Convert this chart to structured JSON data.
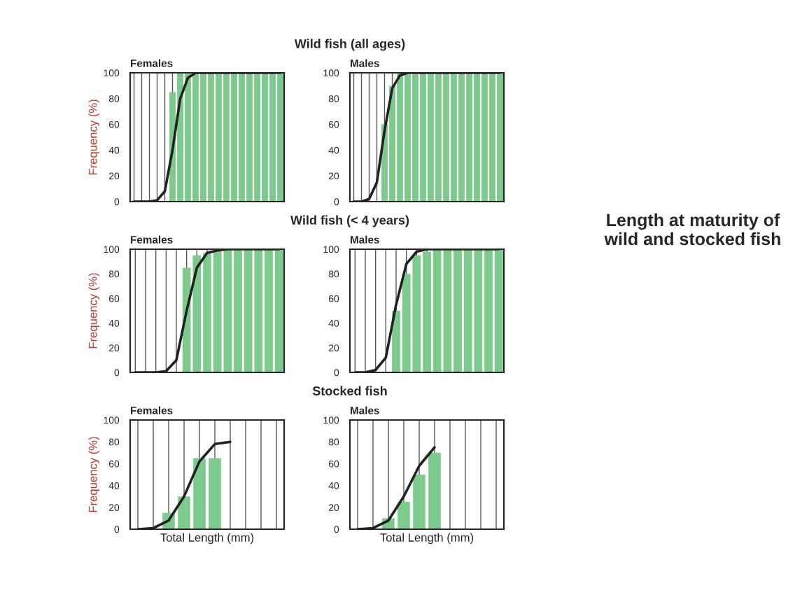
{
  "chart_data": [
    {
      "type": "bar",
      "title": "Females",
      "annotations": [
        "Wild fish (all ages)"
      ],
      "ylabel": "Frequency (%)",
      "categories": [
        null,
        null,
        null,
        null,
        null,
        null,
        null,
        null,
        null,
        null,
        null,
        null,
        null,
        null,
        null,
        null,
        null,
        null,
        null,
        null
      ],
      "ylim": [
        0,
        100
      ],
      "yticks": [
        0,
        20,
        40,
        60,
        80,
        100
      ],
      "grid": "x",
      "tick_labels": "y",
      "series": [
        {
          "type": "bar",
          "color": "#7ccb8c",
          "values": [
            0,
            0,
            0,
            0,
            0,
            85,
            100,
            100,
            100,
            100,
            100,
            100,
            100,
            100,
            100,
            100,
            100,
            100,
            100,
            100
          ]
        },
        {
          "type": "line",
          "color": "#222222",
          "values": [
            0,
            0,
            0,
            1,
            8,
            40,
            80,
            96,
            100,
            100,
            100,
            100,
            100,
            100,
            100,
            100,
            100,
            100,
            100,
            100
          ]
        }
      ]
    },
    {
      "type": "bar",
      "title": "Males",
      "categories": [
        null,
        null,
        null,
        null,
        null,
        null,
        null,
        null,
        null,
        null,
        null,
        null,
        null,
        null,
        null,
        null,
        null,
        null,
        null,
        null
      ],
      "ylim": [
        0,
        100
      ],
      "yticks": [
        0,
        20,
        40,
        60,
        80,
        100
      ],
      "grid": "x",
      "tick_labels": "y",
      "series": [
        {
          "type": "bar",
          "color": "#7ccb8c",
          "values": [
            0,
            0,
            0,
            0,
            60,
            90,
            100,
            100,
            100,
            100,
            100,
            100,
            100,
            100,
            100,
            100,
            100,
            100,
            100,
            100
          ]
        },
        {
          "type": "line",
          "color": "#222222",
          "values": [
            0,
            0,
            2,
            15,
            55,
            88,
            98,
            100,
            100,
            100,
            100,
            100,
            100,
            100,
            100,
            100,
            100,
            100,
            100,
            100
          ]
        }
      ]
    },
    {
      "type": "bar",
      "title": "Females",
      "annotations": [
        "Wild fish (< 4 years)"
      ],
      "ylabel": "Frequency (%)",
      "categories": [
        null,
        null,
        null,
        null,
        null,
        null,
        null,
        null,
        null,
        null,
        null,
        null,
        null,
        null,
        null
      ],
      "ylim": [
        0,
        100
      ],
      "yticks": [
        0,
        20,
        40,
        60,
        80,
        100
      ],
      "grid": "x",
      "tick_labels": "y",
      "series": [
        {
          "type": "bar",
          "color": "#7ccb8c",
          "values": [
            0,
            0,
            0,
            0,
            0,
            85,
            95,
            97,
            100,
            100,
            100,
            100,
            100,
            100,
            100
          ]
        },
        {
          "type": "line",
          "color": "#222222",
          "values": [
            0,
            0,
            0,
            1,
            10,
            50,
            85,
            97,
            99,
            100,
            100,
            100,
            100,
            100,
            100
          ]
        }
      ]
    },
    {
      "type": "bar",
      "title": "Males",
      "categories": [
        null,
        null,
        null,
        null,
        null,
        null,
        null,
        null,
        null,
        null,
        null,
        null,
        null,
        null,
        null
      ],
      "ylim": [
        0,
        100
      ],
      "yticks": [
        0,
        20,
        40,
        60,
        80,
        100
      ],
      "grid": "x",
      "tick_labels": "y",
      "series": [
        {
          "type": "bar",
          "color": "#7ccb8c",
          "values": [
            0,
            0,
            0,
            0,
            50,
            80,
            95,
            98,
            100,
            100,
            100,
            100,
            100,
            100,
            100
          ]
        },
        {
          "type": "line",
          "color": "#222222",
          "values": [
            0,
            0,
            2,
            12,
            55,
            88,
            98,
            100,
            100,
            100,
            100,
            100,
            100,
            100,
            100
          ]
        }
      ]
    },
    {
      "type": "bar",
      "title": "Females",
      "annotations": [
        "Stocked fish"
      ],
      "ylabel": "Frequency (%)",
      "xlabel": "Total Length (mm)",
      "categories": [
        null,
        null,
        null,
        null,
        null,
        null,
        null,
        null,
        null,
        null
      ],
      "ylim": [
        0,
        100
      ],
      "yticks": [
        0,
        20,
        40,
        60,
        80,
        100
      ],
      "grid": "x",
      "tick_labels": "y",
      "series": [
        {
          "type": "bar",
          "color": "#7ccb8c",
          "values": [
            0,
            0,
            15,
            30,
            65,
            65,
            null,
            null,
            null,
            null
          ]
        },
        {
          "type": "line",
          "color": "#222222",
          "values": [
            0,
            1,
            8,
            30,
            62,
            78,
            80,
            null,
            null,
            null
          ]
        }
      ]
    },
    {
      "type": "bar",
      "title": "Males",
      "xlabel": "Total Length (mm)",
      "categories": [
        null,
        null,
        null,
        null,
        null,
        null,
        null,
        null,
        null,
        null
      ],
      "ylim": [
        0,
        100
      ],
      "yticks": [
        0,
        20,
        40,
        60,
        80,
        100
      ],
      "grid": "x",
      "tick_labels": "y",
      "series": [
        {
          "type": "bar",
          "color": "#7ccb8c",
          "values": [
            0,
            0,
            10,
            25,
            50,
            70,
            null,
            null,
            null,
            null
          ]
        },
        {
          "type": "line",
          "color": "#222222",
          "values": [
            0,
            1,
            8,
            30,
            58,
            75,
            null,
            null,
            null,
            null
          ]
        }
      ]
    },
    {
      "type": "other",
      "title": "Length at maturity of wild and stocked fish"
    }
  ]
}
